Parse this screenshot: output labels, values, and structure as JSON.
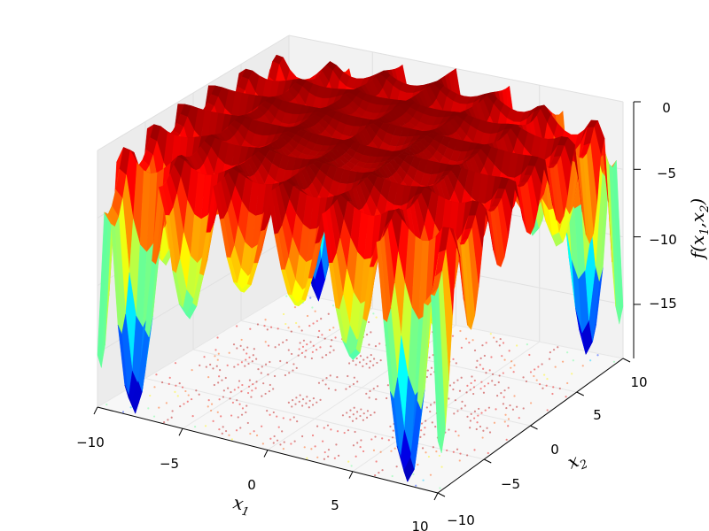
{
  "chart_data": {
    "type": "surface3d",
    "title": "",
    "xlabel": "x",
    "xlabel_sub": "1",
    "ylabel": "x",
    "ylabel_sub": "2",
    "zlabel": "f(x",
    "zlabel_mid": ",x",
    "zlabel_end": ")",
    "zlabel_sub1": "1",
    "zlabel_sub2": "2",
    "xlim": [
      -10,
      10
    ],
    "ylim": [
      -10,
      10
    ],
    "zlim": [
      -19,
      0
    ],
    "xticks": [
      "−10",
      "−5",
      "0",
      "5",
      "10"
    ],
    "yticks": [
      "−10",
      "−5",
      "0",
      "5",
      "10"
    ],
    "zticks": [
      "0",
      "−5",
      "−10",
      "−15"
    ],
    "colormap": "jet",
    "contour_offset_z": -19,
    "grid": true,
    "pane_color": "#f2f2f2",
    "edge_color": "#8b0000",
    "surface_minimum": -19.2,
    "surface_maximum": 0,
    "sample_grid_step": 0.4
  }
}
